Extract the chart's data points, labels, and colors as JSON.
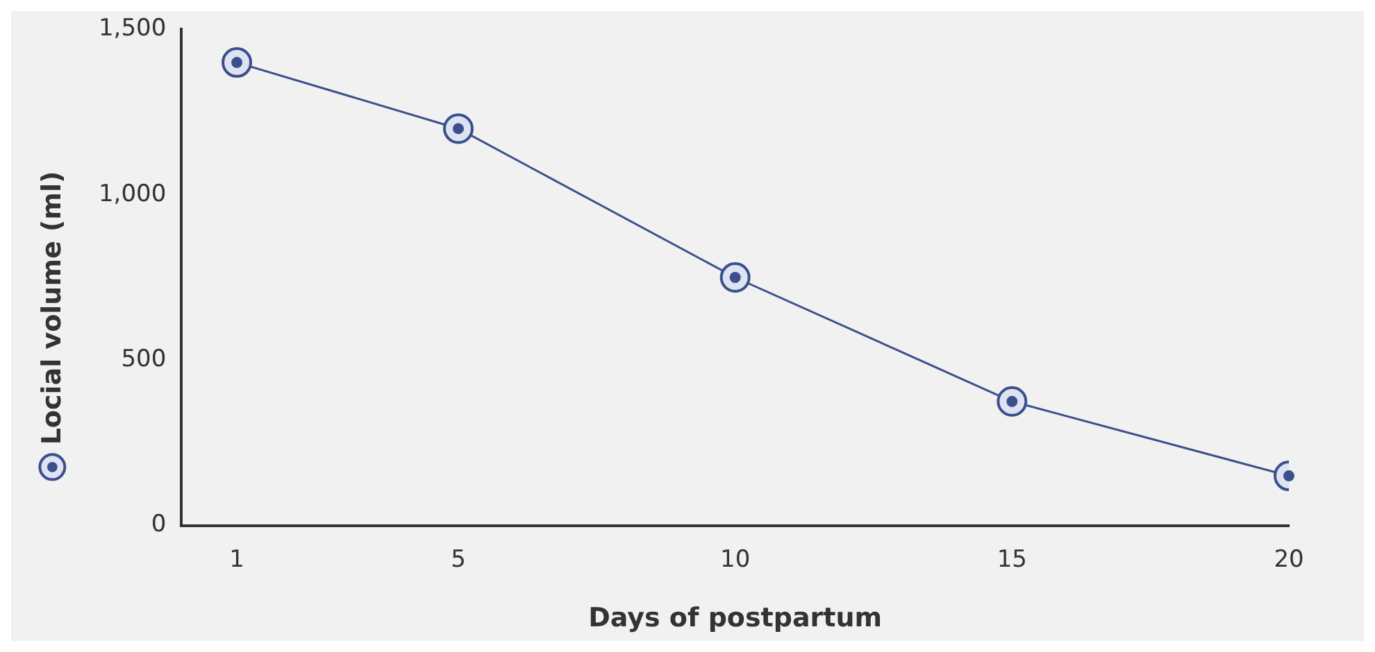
{
  "chart_data": {
    "type": "line",
    "xlabel": "Days of postpartum",
    "ylabel": "Locial volume (ml)",
    "x": [
      1,
      5,
      10,
      15,
      20
    ],
    "series": [
      {
        "values": [
          1400,
          1200,
          750,
          375,
          150
        ],
        "color": "#3b4f8c"
      }
    ],
    "xlim": [
      0,
      20
    ],
    "xticks": [
      1,
      5,
      10,
      15,
      20
    ],
    "ylim": [
      0,
      1500
    ],
    "yticks": [
      0,
      {
        "value": 500,
        "label": "500"
      },
      {
        "value": 1000,
        "label": "1,000"
      },
      {
        "value": 1500,
        "label": "1,500"
      }
    ],
    "grid": false,
    "legend": false,
    "marker": "circle",
    "line_style": "solid"
  }
}
